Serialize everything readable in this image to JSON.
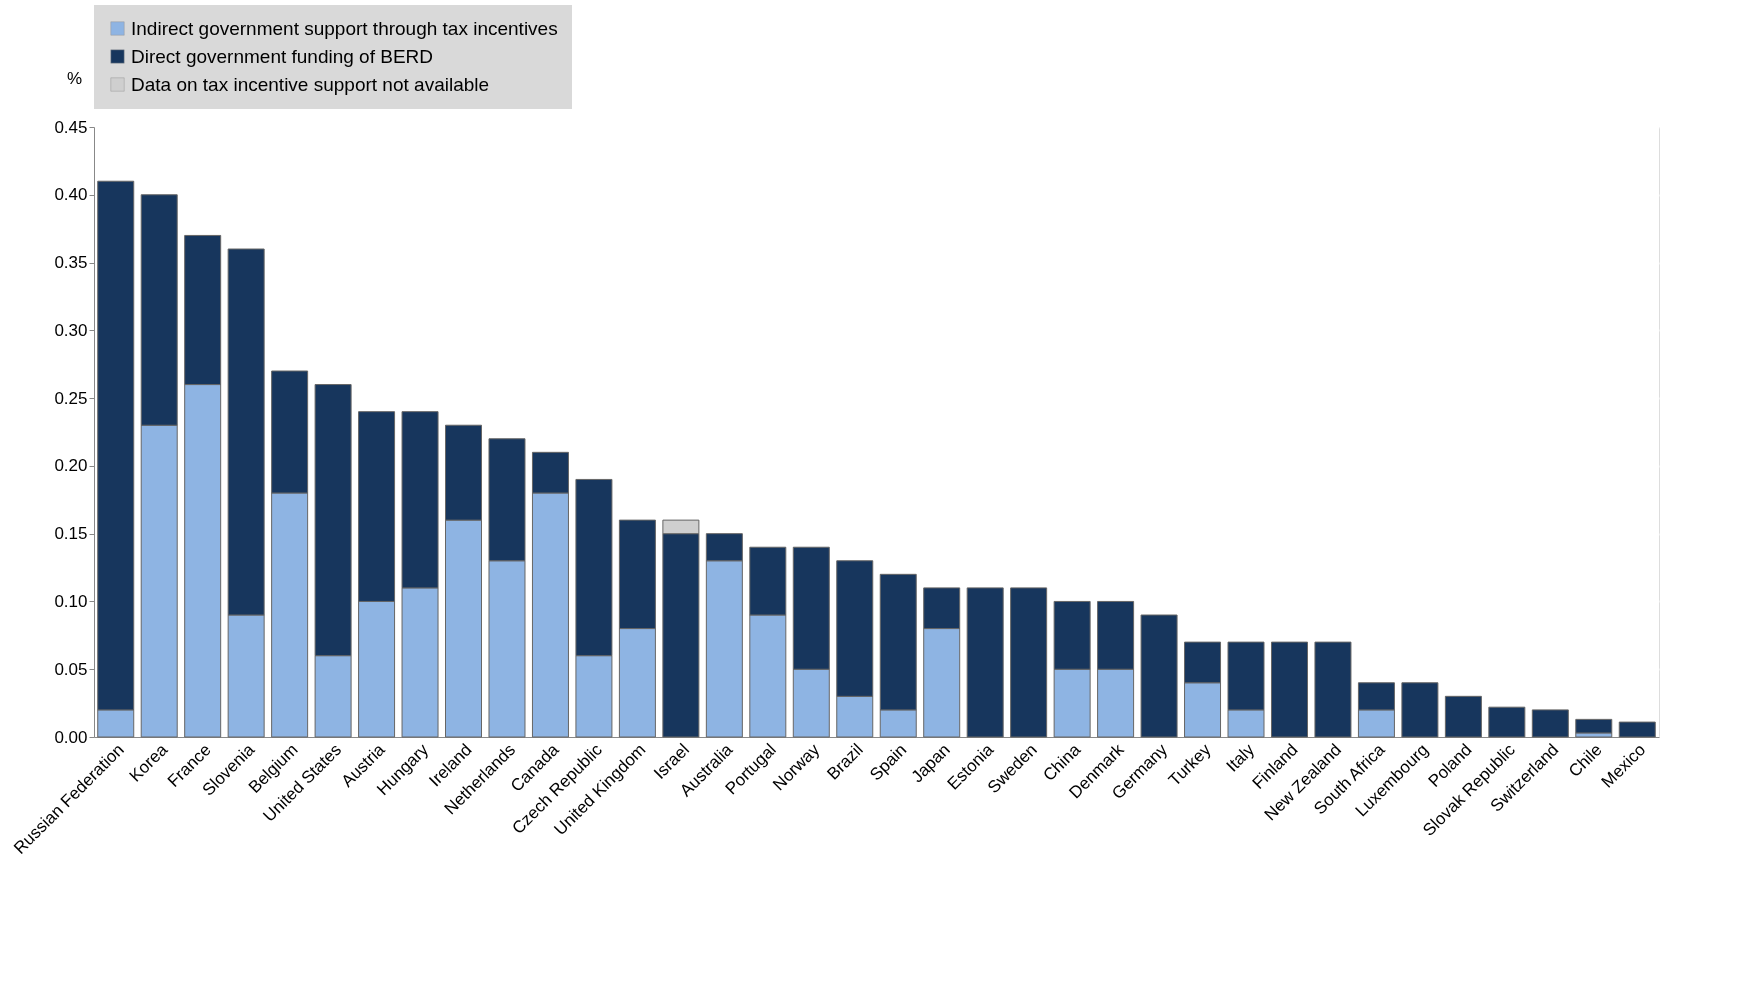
{
  "chart_data": {
    "type": "bar",
    "stacked": true,
    "ylabel": "%",
    "categories": [
      "Russian Federation",
      "Korea",
      "France",
      "Slovenia",
      "Belgium",
      "United States",
      "Austria",
      "Hungary",
      "Ireland",
      "Netherlands",
      "Canada",
      "Czech Republic",
      "United Kingdom",
      "Israel",
      "Australia",
      "Portugal",
      "Norway",
      "Brazil",
      "Spain",
      "Japan",
      "Estonia",
      "Sweden",
      "China",
      "Denmark",
      "Germany",
      "Turkey",
      "Italy",
      "Finland",
      "New Zealand",
      "South Africa",
      "Luxembourg",
      "Poland",
      "Slovak Republic",
      "Switzerland",
      "Chile",
      "Mexico"
    ],
    "series": [
      {
        "name": "Indirect government support through tax incentives",
        "color": "#8eb4e3",
        "values": [
          0.02,
          0.23,
          0.26,
          0.09,
          0.18,
          0.06,
          0.1,
          0.11,
          0.16,
          0.13,
          0.18,
          0.06,
          0.08,
          null,
          0.13,
          0.09,
          0.05,
          0.03,
          0.02,
          0.08,
          null,
          null,
          0.05,
          0.05,
          null,
          0.04,
          0.02,
          null,
          null,
          0.02,
          null,
          null,
          null,
          null,
          0.003,
          null
        ]
      },
      {
        "name": "Direct government funding of BERD",
        "color": "#17365d",
        "values": [
          0.39,
          0.17,
          0.11,
          0.27,
          0.09,
          0.2,
          0.14,
          0.13,
          0.07,
          0.09,
          0.03,
          0.13,
          0.08,
          0.15,
          0.02,
          0.05,
          0.09,
          0.1,
          0.1,
          0.03,
          0.11,
          0.11,
          0.05,
          0.05,
          0.09,
          0.03,
          0.05,
          0.07,
          0.07,
          0.02,
          0.04,
          0.03,
          0.022,
          0.02,
          0.01,
          0.011
        ]
      },
      {
        "name": "Data on tax incentive support not available",
        "color": "#cfcfcf",
        "values": [
          null,
          null,
          null,
          null,
          null,
          null,
          null,
          null,
          null,
          null,
          null,
          null,
          null,
          0.01,
          null,
          null,
          null,
          null,
          null,
          null,
          null,
          null,
          null,
          null,
          null,
          null,
          null,
          null,
          null,
          null,
          null,
          null,
          null,
          null,
          null,
          null
        ]
      }
    ],
    "ylim": [
      0,
      0.45
    ],
    "yticks": [
      {
        "value": 0,
        "label": "0.00"
      },
      {
        "value": 0.05,
        "label": "0.05"
      },
      {
        "value": 0.1,
        "label": "0.10"
      },
      {
        "value": 0.15,
        "label": "0.15"
      },
      {
        "value": 0.2,
        "label": "0.20"
      },
      {
        "value": 0.25,
        "label": "0.25"
      },
      {
        "value": 0.3,
        "label": "0.30"
      },
      {
        "value": 0.35,
        "label": "0.35"
      },
      {
        "value": 0.4,
        "label": "0.40"
      },
      {
        "value": 0.45,
        "label": "0.45"
      }
    ],
    "grid": true,
    "legend": "top"
  }
}
